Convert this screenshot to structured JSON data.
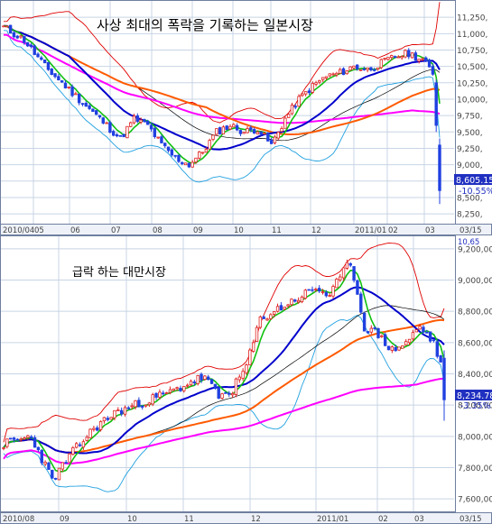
{
  "chart_data": [
    {
      "type": "candlestick",
      "title": "사상 최대의 폭락을 기록하는 일본시장",
      "ylim": [
        8100,
        11500
      ],
      "y_ticks": [
        {
          "value": 11250,
          "label": "11,250,"
        },
        {
          "value": 11000,
          "label": "11,000,"
        },
        {
          "value": 10750,
          "label": "10,750,"
        },
        {
          "value": 10500,
          "label": "10,500,"
        },
        {
          "value": 10250,
          "label": "10,250,"
        },
        {
          "value": 10000,
          "label": "10,000,"
        },
        {
          "value": 9750,
          "label": "9,750,"
        },
        {
          "value": 9500,
          "label": "9,500,"
        },
        {
          "value": 9250,
          "label": "9,250,"
        },
        {
          "value": 9000,
          "label": "9,000,"
        },
        {
          "value": 8750,
          "label": "8,750,"
        },
        {
          "value": 8500,
          "label": "8,500,"
        },
        {
          "value": 8250,
          "label": "8,250,"
        }
      ],
      "x_labels": [
        "2010/04",
        "05",
        "06",
        "07",
        "08",
        "09",
        "10",
        "11",
        "12",
        "2011/01",
        "02",
        "03",
        "03/15"
      ],
      "price_anchors": [
        [
          0,
          11100
        ],
        [
          6,
          10900
        ],
        [
          12,
          10500
        ],
        [
          18,
          10200
        ],
        [
          24,
          9900
        ],
        [
          30,
          9600
        ],
        [
          34,
          9400
        ],
        [
          38,
          9700
        ],
        [
          42,
          9600
        ],
        [
          46,
          9300
        ],
        [
          50,
          9100
        ],
        [
          54,
          9000
        ],
        [
          58,
          9200
        ],
        [
          62,
          9500
        ],
        [
          66,
          9600
        ],
        [
          70,
          9500
        ],
        [
          74,
          9550
        ],
        [
          78,
          9300
        ],
        [
          82,
          9700
        ],
        [
          86,
          10000
        ],
        [
          90,
          10200
        ],
        [
          94,
          10350
        ],
        [
          98,
          10400
        ],
        [
          102,
          10500
        ],
        [
          106,
          10450
        ],
        [
          110,
          10550
        ],
        [
          114,
          10650
        ],
        [
          118,
          10700
        ],
        [
          122,
          10600
        ],
        [
          125,
          10400
        ]
      ],
      "crash": [
        {
          "open": 10250,
          "high": 10300,
          "low": 9500,
          "close": 9600
        },
        {
          "open": 9300,
          "high": 9400,
          "low": 8400,
          "close": 8605
        }
      ],
      "last_value": "8,605.15",
      "last_change": "-10.55%"
    },
    {
      "type": "candlestick",
      "title": "급락 하는 대만시장",
      "ylim": [
        7520,
        9280
      ],
      "y_ticks": [
        {
          "value": 9200,
          "label": "9,200,00"
        },
        {
          "value": 9000,
          "label": "9,000,00"
        },
        {
          "value": 8800,
          "label": "8,800,00"
        },
        {
          "value": 8600,
          "label": "8,600,00"
        },
        {
          "value": 8400,
          "label": "8,400,00"
        },
        {
          "value": 8200,
          "label": "8,200,00"
        },
        {
          "value": 8000,
          "label": "8,000,00"
        },
        {
          "value": 7800,
          "label": "7,800,00"
        },
        {
          "value": 7600,
          "label": "7,600,00"
        }
      ],
      "x_labels": [
        "2010/08",
        "09",
        "10",
        "11",
        "12",
        "2011/01",
        "02",
        "03",
        "03/15"
      ],
      "price_anchors": [
        [
          0,
          7950
        ],
        [
          8,
          8000
        ],
        [
          14,
          7720
        ],
        [
          20,
          7900
        ],
        [
          26,
          8050
        ],
        [
          32,
          8150
        ],
        [
          38,
          8200
        ],
        [
          44,
          8250
        ],
        [
          50,
          8300
        ],
        [
          54,
          8350
        ],
        [
          58,
          8380
        ],
        [
          62,
          8250
        ],
        [
          66,
          8300
        ],
        [
          70,
          8450
        ],
        [
          74,
          8750
        ],
        [
          78,
          8800
        ],
        [
          82,
          8850
        ],
        [
          86,
          8900
        ],
        [
          90,
          8950
        ],
        [
          94,
          8900
        ],
        [
          98,
          9050
        ],
        [
          100,
          9120
        ],
        [
          104,
          8700
        ],
        [
          108,
          8650
        ],
        [
          112,
          8550
        ],
        [
          116,
          8600
        ],
        [
          120,
          8700
        ],
        [
          124,
          8600
        ],
        [
          126,
          8450
        ]
      ],
      "crash": [
        {
          "open": 8500,
          "high": 8550,
          "low": 8100,
          "close": 8234
        }
      ],
      "last_value": "8,234.78",
      "last_change": "-3.35%"
    }
  ],
  "top_clip_label": "10,65",
  "colors": {
    "up": "#e02020",
    "down": "#2040e0",
    "ma5": "#10c010",
    "ma20": "#0000cc",
    "ma60": "#ff5a00",
    "ma120": "#ff00ff",
    "ma_thin": "#000000",
    "bb_upper": "#e00000",
    "bb_lower": "#20a0e0",
    "grid": "#c8d4e4",
    "frame": "#6f7f9f",
    "axis_text": "#444444",
    "badge": "#2030c0"
  }
}
